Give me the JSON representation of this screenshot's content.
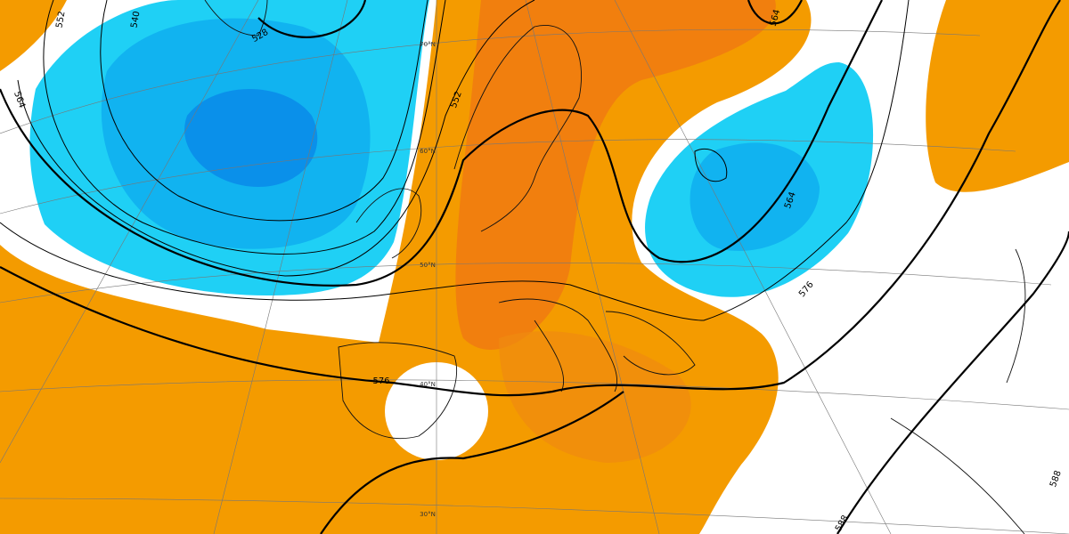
{
  "contour_labels": [
    "540",
    "552",
    "528",
    "564",
    "552",
    "564",
    "564",
    "576",
    "576",
    "588",
    "588"
  ],
  "latitude_labels": [
    "70°N",
    "60°N",
    "50°N",
    "40°N",
    "30°N"
  ]
}
